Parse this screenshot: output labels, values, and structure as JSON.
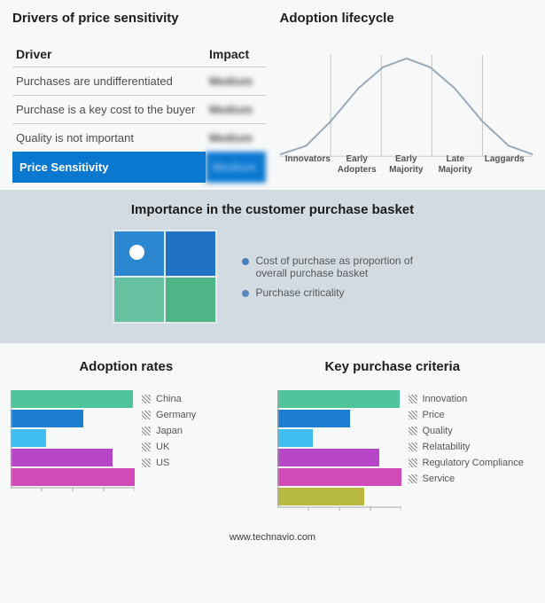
{
  "drivers": {
    "title": "Drivers of price sensitivity",
    "col1": "Driver",
    "col2": "Impact",
    "rows": [
      {
        "label": "Purchases are undifferentiated",
        "impact": "Medium"
      },
      {
        "label": "Purchase is a key cost to the buyer",
        "impact": "Medium"
      },
      {
        "label": "Quality is not important",
        "impact": "Medium"
      }
    ],
    "highlight": {
      "label": "Price Sensitivity",
      "impact": "Medium",
      "bg": "#0b78d0"
    }
  },
  "lifecycle": {
    "title": "Adoption lifecycle",
    "line_color": "#9aa9b8",
    "line_width": 2,
    "grid_color": "#c3c3c3",
    "categories": [
      "Innovators",
      "Early Adopters",
      "Early Majority",
      "Late Majority",
      "Laggards"
    ],
    "points": [
      [
        0,
        128
      ],
      [
        30,
        118
      ],
      [
        58,
        90
      ],
      [
        90,
        52
      ],
      [
        118,
        28
      ],
      [
        145,
        18
      ],
      [
        172,
        28
      ],
      [
        200,
        52
      ],
      [
        232,
        90
      ],
      [
        262,
        118
      ],
      [
        290,
        128
      ]
    ]
  },
  "basket": {
    "title": "Importance in the customer purchase basket",
    "quad_colors": [
      "#2a87d0",
      "#1f72c6",
      "#66c1a0",
      "#4eb587"
    ],
    "items": [
      "Cost of purchase as proportion of overall purchase basket",
      "Purchase criticality"
    ]
  },
  "adoption": {
    "title": "Adoption rates",
    "axis_color": "#aaa",
    "xmax": 140,
    "bars": [
      {
        "label": "China",
        "value": 138,
        "color": "#4fc49a"
      },
      {
        "label": "Germany",
        "value": 82,
        "color": "#1c7ed0"
      },
      {
        "label": "Japan",
        "value": 40,
        "color": "#3fbff1"
      },
      {
        "label": "UK",
        "value": 115,
        "color": "#b646c6"
      },
      {
        "label": "US",
        "value": 140,
        "color": "#d14ab8"
      }
    ]
  },
  "criteria": {
    "title": "Key purchase criteria",
    "axis_color": "#aaa",
    "xmax": 140,
    "bars": [
      {
        "label": "Innovation",
        "value": 138,
        "color": "#4fc49a"
      },
      {
        "label": "Price",
        "value": 82,
        "color": "#1c7ed0"
      },
      {
        "label": "Quality",
        "value": 40,
        "color": "#3fbff1"
      },
      {
        "label": "Relatability",
        "value": 115,
        "color": "#b646c6"
      },
      {
        "label": "Regulatory Compliance",
        "value": 140,
        "color": "#d14ab8"
      },
      {
        "label": "Service",
        "value": 98,
        "color": "#b8ba3f"
      }
    ]
  },
  "footer": "www.technavio.com"
}
